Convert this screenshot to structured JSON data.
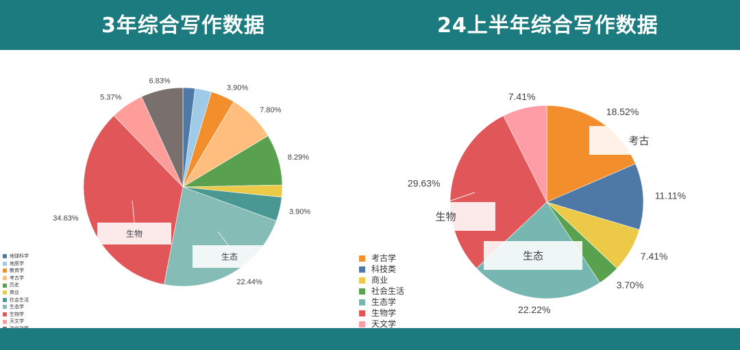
{
  "header": {
    "left_title": "3年综合写作数据",
    "right_title": "24上半年综合写作数据"
  },
  "chart_data": [
    {
      "type": "pie",
      "title": "3年综合写作数据",
      "legend_position": "bottom-left",
      "slices": [
        {
          "label": "地球科学",
          "value": 1.95,
          "color": "#4e79a7",
          "value_label": ""
        },
        {
          "label": "地质学",
          "value": 2.68,
          "color": "#a0cbe8",
          "value_label": ""
        },
        {
          "label": "教育学",
          "value": 3.9,
          "color": "#f28e2b",
          "value_label": "3.90%"
        },
        {
          "label": "考古学",
          "value": 7.8,
          "color": "#ffbe7d",
          "value_label": "7.80%"
        },
        {
          "label": "历史",
          "value": 8.29,
          "color": "#59a14f",
          "value_label": "8.29%"
        },
        {
          "label": "商业",
          "value": 1.95,
          "color": "#edc948",
          "value_label": ""
        },
        {
          "label": "社会生活",
          "value": 3.9,
          "color": "#499894",
          "value_label": "3.90%"
        },
        {
          "label": "生态学",
          "value": 22.44,
          "color": "#86bcb6",
          "value_label": "22.44%"
        },
        {
          "label": "生物学",
          "value": 34.63,
          "color": "#e15759",
          "value_label": "34.63%"
        },
        {
          "label": "天文学",
          "value": 5.37,
          "color": "#ff9d9a",
          "value_label": "5.37%"
        },
        {
          "label": "政府政策",
          "value": 6.83,
          "color": "#79706e",
          "value_label": "6.83%"
        }
      ],
      "annotations": [
        "生物",
        "生态"
      ]
    },
    {
      "type": "pie",
      "title": "24上半年综合写作数据",
      "legend_position": "bottom-left",
      "slices": [
        {
          "label": "考古学",
          "value": 18.52,
          "color": "#f28e2b",
          "value_label": "18.52%"
        },
        {
          "label": "科技类",
          "value": 11.11,
          "color": "#4e79a7",
          "value_label": "11.11%"
        },
        {
          "label": "商业",
          "value": 7.41,
          "color": "#edc948",
          "value_label": "7.41%"
        },
        {
          "label": "社会生活",
          "value": 3.7,
          "color": "#59a14f",
          "value_label": "3.70%"
        },
        {
          "label": "生态学",
          "value": 22.22,
          "color": "#76b7b2",
          "value_label": "22.22%"
        },
        {
          "label": "生物学",
          "value": 29.63,
          "color": "#e15759",
          "value_label": "29.63%"
        },
        {
          "label": "天文学",
          "value": 7.41,
          "color": "#ff9da7",
          "value_label": "7.41%"
        }
      ],
      "annotations": [
        "考古",
        "生物",
        "生态"
      ]
    }
  ]
}
